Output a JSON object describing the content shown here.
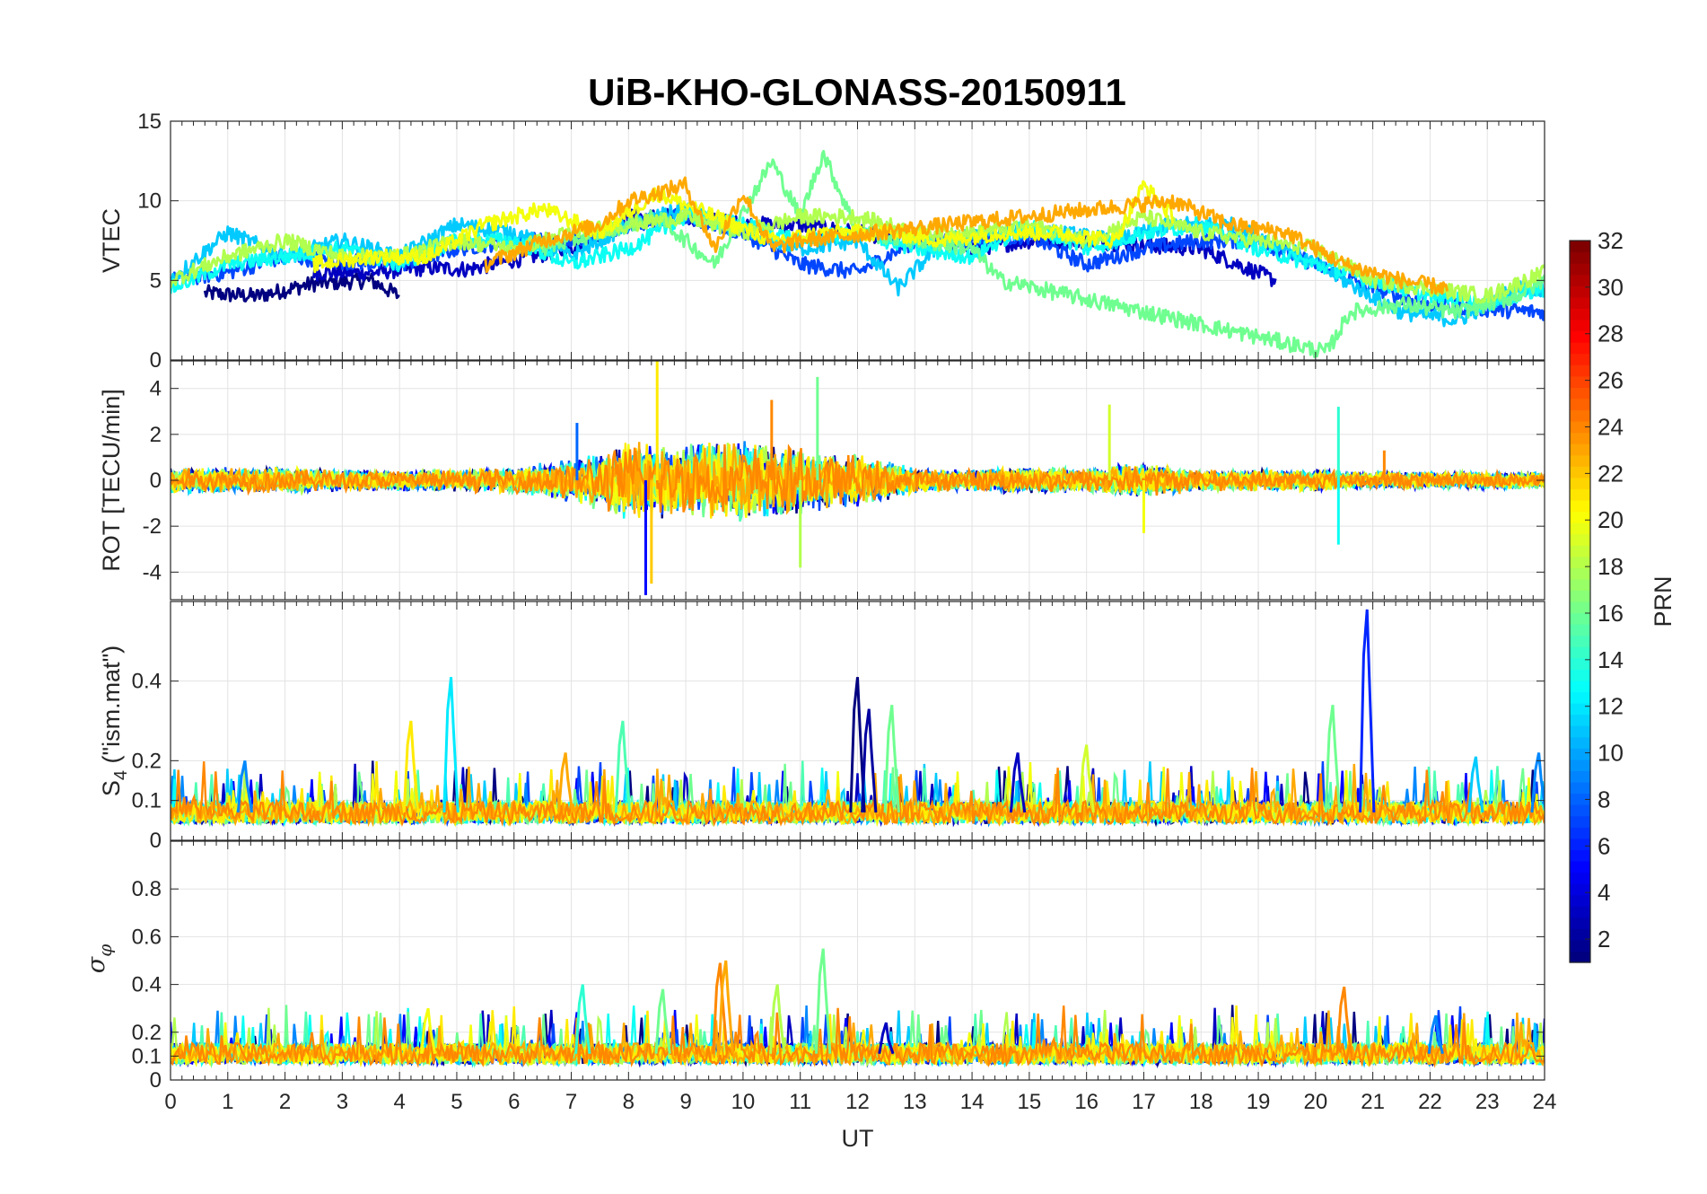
{
  "chart_data": [
    {
      "type": "line",
      "panel": "vtec",
      "title": "UiB-KHO-GLONASS-20150911",
      "ylabel": "VTEC",
      "xlabel": "",
      "xlim": [
        0,
        24
      ],
      "ylim": [
        0,
        15
      ],
      "yticks": [
        0,
        5,
        10,
        15
      ],
      "ytick_labels": [
        "0",
        "5",
        "10",
        "15"
      ],
      "grid": true,
      "series": [
        {
          "name": "PRN 1",
          "prn": 1,
          "x": [
            0.6,
            1.5,
            2.5,
            3.5,
            4.0
          ],
          "values": [
            4.2,
            4.0,
            4.8,
            5.0,
            4.0
          ]
        },
        {
          "name": "PRN 3",
          "prn": 3,
          "x": [
            2.5,
            3.5,
            4.5,
            5.2,
            7.0,
            8.0,
            9.0,
            10.0,
            11.0,
            12.0,
            13.0,
            14.0,
            15.0,
            16.0,
            17.0,
            18.0,
            19.3
          ],
          "values": [
            5.5,
            5.5,
            5.8,
            5.7,
            7.0,
            9.0,
            9.0,
            8.5,
            8.5,
            8.0,
            7.5,
            7.0,
            7.5,
            7.5,
            7.2,
            7.0,
            5.0
          ]
        },
        {
          "name": "PRN 7",
          "prn": 7,
          "x": [
            0.0,
            1.0,
            2.0,
            3.0,
            4.0,
            5.0,
            6.0,
            7.0,
            8.0,
            9.0,
            10.0,
            11.0,
            12.0,
            13.0,
            14.0,
            15.0,
            16.0,
            17.0,
            18.0,
            19.0,
            20.0,
            21.0,
            22.0,
            23.0,
            24.0
          ],
          "values": [
            5.0,
            5.5,
            6.5,
            6.2,
            6.0,
            7.0,
            7.5,
            7.5,
            8.5,
            9.0,
            8.0,
            6.0,
            5.5,
            7.5,
            7.5,
            7.8,
            6.0,
            7.0,
            7.5,
            7.5,
            6.0,
            4.5,
            3.5,
            3.2,
            3.0
          ]
        },
        {
          "name": "PRN 11",
          "prn": 11,
          "x": [
            0.0,
            1.0,
            2.0,
            3.0,
            4.0,
            5.0,
            6.0,
            7.0,
            8.0,
            9.0,
            10.0,
            11.0,
            12.0,
            12.7,
            13.5,
            14.5,
            15.5,
            16.5,
            17.5,
            18.5,
            19.5,
            20.5,
            21.5,
            22.5,
            23.5,
            24.0
          ],
          "values": [
            5.0,
            8.0,
            6.5,
            7.5,
            6.5,
            8.5,
            8.0,
            6.5,
            8.5,
            9.5,
            8.0,
            7.0,
            7.5,
            4.5,
            7.5,
            8.0,
            8.0,
            7.5,
            8.5,
            8.5,
            7.0,
            5.0,
            3.0,
            2.5,
            4.5,
            4.5
          ]
        },
        {
          "name": "PRN 13",
          "prn": 13,
          "x": [
            0.0,
            1.0,
            2.0,
            3.0,
            4.0,
            5.0,
            6.0,
            7.0,
            8.0,
            9.0,
            10.0,
            11.0,
            12.0,
            13.0,
            14.0,
            15.0,
            16.0,
            17.0,
            18.0,
            19.0,
            20.0,
            21.0,
            22.0,
            23.0,
            24.0
          ],
          "values": [
            4.5,
            6.0,
            6.5,
            7.0,
            6.0,
            7.5,
            7.5,
            6.0,
            7.0,
            9.0,
            8.5,
            7.5,
            8.0,
            7.0,
            6.5,
            8.5,
            7.0,
            8.0,
            8.5,
            7.0,
            6.0,
            5.0,
            4.0,
            3.5,
            4.5
          ]
        },
        {
          "name": "PRN 16",
          "prn": 16,
          "x": [
            6.5,
            7.5,
            8.5,
            9.5,
            10.5,
            11.0,
            11.4,
            12.0,
            13.0,
            14.0,
            14.5,
            20.2,
            20.6,
            21.5,
            22.5,
            23.5,
            24.0
          ],
          "values": [
            7.0,
            8.0,
            9.0,
            6.0,
            12.5,
            9.0,
            13.0,
            8.0,
            7.5,
            7.0,
            5.0,
            0.5,
            3.0,
            3.5,
            3.0,
            4.0,
            5.0
          ]
        },
        {
          "name": "PRN 18",
          "prn": 18,
          "x": [
            0.0,
            1.0,
            2.0,
            3.0,
            4.0,
            5.0,
            6.0,
            7.0,
            8.0,
            9.0,
            10.0,
            11.0,
            12.0,
            13.0,
            14.0,
            15.0,
            16.0,
            17.0,
            18.0,
            19.0,
            20.0,
            21.0,
            22.0,
            23.0,
            24.0
          ],
          "values": [
            5.0,
            6.5,
            7.5,
            6.5,
            6.5,
            7.5,
            7.0,
            8.0,
            8.5,
            9.0,
            8.0,
            9.0,
            9.0,
            8.0,
            8.0,
            8.5,
            7.5,
            9.0,
            8.0,
            7.5,
            7.0,
            5.0,
            4.5,
            4.0,
            5.5
          ]
        },
        {
          "name": "PRN 20",
          "prn": 20,
          "x": [
            2.5,
            3.5,
            4.5,
            5.5,
            6.5,
            7.5,
            8.5,
            9.5,
            10.5,
            11.5,
            12.5,
            13.5,
            14.5,
            15.5,
            16.5,
            17.0,
            17.5
          ],
          "values": [
            6.0,
            6.5,
            6.5,
            8.5,
            9.5,
            8.0,
            10.5,
            9.0,
            7.5,
            8.0,
            8.0,
            7.5,
            8.0,
            8.0,
            7.5,
            11.0,
            9.0
          ]
        },
        {
          "name": "PRN 23",
          "prn": 23,
          "x": [
            5.5,
            6.5,
            7.5,
            8.0,
            9.0,
            9.5,
            10.0,
            10.5,
            11.0,
            17.5,
            18.5,
            19.5,
            20.5,
            21.5,
            22.3
          ],
          "values": [
            6.0,
            7.5,
            8.5,
            10.0,
            11.0,
            7.0,
            10.5,
            7.0,
            7.5,
            10.0,
            8.5,
            8.0,
            6.0,
            5.0,
            4.5
          ]
        }
      ]
    },
    {
      "type": "line",
      "panel": "rot",
      "ylabel": "ROT [TECU/min]",
      "xlabel": "",
      "xlim": [
        0,
        24
      ],
      "ylim": [
        -5.2,
        5.2
      ],
      "yticks": [
        -4,
        -2,
        0,
        2,
        4
      ],
      "ytick_labels": [
        "-4",
        "-2",
        "0",
        "2",
        "4"
      ],
      "grid": true,
      "envelope": {
        "x": [
          0,
          1,
          2,
          3,
          4,
          5,
          6,
          7,
          8,
          9,
          10,
          11,
          12,
          13,
          14,
          15,
          16,
          17,
          18,
          19,
          20,
          21,
          22,
          23,
          24
        ],
        "amplitude": [
          0.6,
          0.6,
          0.6,
          0.5,
          0.5,
          0.5,
          0.6,
          1.0,
          1.8,
          1.8,
          1.8,
          1.6,
          1.2,
          0.6,
          0.5,
          0.6,
          0.6,
          0.8,
          0.5,
          0.5,
          0.5,
          0.4,
          0.4,
          0.4,
          0.4
        ]
      },
      "spikes": [
        {
          "x": 7.1,
          "y": 2.5,
          "prn": 8
        },
        {
          "x": 8.3,
          "y": -5.0,
          "prn": 5
        },
        {
          "x": 8.5,
          "y": 5.5,
          "prn": 21
        },
        {
          "x": 8.4,
          "y": -4.5,
          "prn": 22
        },
        {
          "x": 10.5,
          "y": 3.5,
          "prn": 24
        },
        {
          "x": 11.3,
          "y": 4.5,
          "prn": 16
        },
        {
          "x": 11.0,
          "y": -3.8,
          "prn": 18
        },
        {
          "x": 17.0,
          "y": -2.3,
          "prn": 20
        },
        {
          "x": 16.4,
          "y": 3.3,
          "prn": 19
        },
        {
          "x": 20.4,
          "y": 3.2,
          "prn": 14
        },
        {
          "x": 20.4,
          "y": -2.8,
          "prn": 13
        },
        {
          "x": 21.2,
          "y": 1.3,
          "prn": 24
        }
      ]
    },
    {
      "type": "line",
      "panel": "s4",
      "ylabel": "S4 (\"ism.mat\")",
      "xlabel": "",
      "xlim": [
        0,
        24
      ],
      "ylim": [
        0,
        0.6
      ],
      "yticks": [
        0,
        0.1,
        0.2,
        0.4
      ],
      "ytick_labels": [
        "0",
        "0.1",
        "0.2",
        "0.4"
      ],
      "grid": true,
      "baseline": 0.07,
      "spikes": [
        {
          "x": 1.3,
          "y": 0.2,
          "prn": 9
        },
        {
          "x": 4.2,
          "y": 0.3,
          "prn": 21
        },
        {
          "x": 4.9,
          "y": 0.41,
          "prn": 12
        },
        {
          "x": 6.9,
          "y": 0.22,
          "prn": 23
        },
        {
          "x": 7.9,
          "y": 0.3,
          "prn": 15
        },
        {
          "x": 12.0,
          "y": 0.41,
          "prn": 1
        },
        {
          "x": 12.2,
          "y": 0.33,
          "prn": 2
        },
        {
          "x": 12.6,
          "y": 0.34,
          "prn": 16
        },
        {
          "x": 14.8,
          "y": 0.22,
          "prn": 3
        },
        {
          "x": 16.0,
          "y": 0.24,
          "prn": 19
        },
        {
          "x": 20.3,
          "y": 0.34,
          "prn": 16
        },
        {
          "x": 20.9,
          "y": 0.58,
          "prn": 6
        },
        {
          "x": 22.8,
          "y": 0.21,
          "prn": 11
        },
        {
          "x": 23.9,
          "y": 0.22,
          "prn": 9
        }
      ]
    },
    {
      "type": "line",
      "panel": "sigma_phi",
      "ylabel": "σφ",
      "xlabel": "UT",
      "xlim": [
        0,
        24
      ],
      "ylim": [
        0,
        1
      ],
      "yticks": [
        0,
        0.1,
        0.2,
        0.4,
        0.6,
        0.8
      ],
      "ytick_labels": [
        "0",
        "0.1",
        "0.2",
        "0.4",
        "0.6",
        "0.8"
      ],
      "xticks": [
        0,
        1,
        2,
        3,
        4,
        5,
        6,
        7,
        8,
        9,
        10,
        11,
        12,
        13,
        14,
        15,
        16,
        17,
        18,
        19,
        20,
        21,
        22,
        23,
        24
      ],
      "xtick_labels": [
        "0",
        "1",
        "2",
        "3",
        "4",
        "5",
        "6",
        "7",
        "8",
        "9",
        "10",
        "11",
        "12",
        "13",
        "14",
        "15",
        "16",
        "17",
        "18",
        "19",
        "20",
        "21",
        "22",
        "23",
        "24"
      ],
      "grid": true,
      "baseline": 0.11,
      "spikes": [
        {
          "x": 4.5,
          "y": 0.3,
          "prn": 20
        },
        {
          "x": 7.2,
          "y": 0.4,
          "prn": 14
        },
        {
          "x": 8.6,
          "y": 0.38,
          "prn": 16
        },
        {
          "x": 9.6,
          "y": 0.49,
          "prn": 24
        },
        {
          "x": 9.7,
          "y": 0.5,
          "prn": 23
        },
        {
          "x": 10.6,
          "y": 0.4,
          "prn": 18
        },
        {
          "x": 11.4,
          "y": 0.55,
          "prn": 16
        },
        {
          "x": 12.5,
          "y": 0.24,
          "prn": 3
        },
        {
          "x": 20.5,
          "y": 0.39,
          "prn": 24
        },
        {
          "x": 22.1,
          "y": 0.27,
          "prn": 9
        }
      ]
    }
  ],
  "colorbar": {
    "label": "PRN",
    "min": 1,
    "max": 32,
    "ticks": [
      2,
      4,
      6,
      8,
      10,
      12,
      14,
      16,
      18,
      20,
      22,
      24,
      26,
      28,
      30,
      32
    ],
    "tick_labels": [
      "2",
      "4",
      "6",
      "8",
      "10",
      "12",
      "14",
      "16",
      "18",
      "20",
      "22",
      "24",
      "26",
      "28",
      "30",
      "32"
    ],
    "colormap": "jet"
  }
}
